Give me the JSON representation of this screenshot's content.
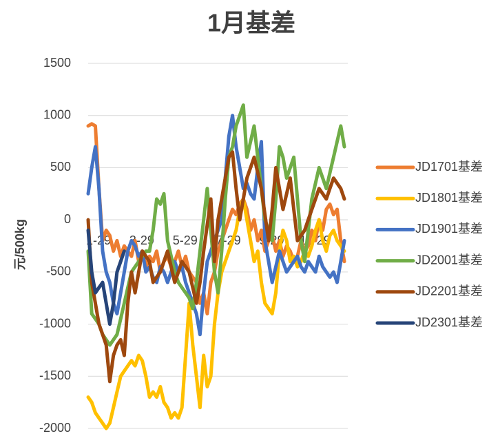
{
  "chart_data": {
    "type": "line",
    "title": "1月基差",
    "y_label": "元/500kg",
    "categories": [
      "1-29",
      null,
      null,
      null,
      null,
      null,
      null,
      null,
      null,
      null,
      null,
      null,
      "3-29",
      null,
      null,
      null,
      null,
      null,
      null,
      null,
      null,
      null,
      null,
      null,
      "5-29",
      null,
      null,
      null,
      null,
      null,
      null,
      null,
      null,
      null,
      null,
      null,
      "7-29",
      null,
      null,
      null,
      null,
      null,
      null,
      null,
      null,
      null,
      null,
      null,
      "9-29",
      null,
      null,
      null,
      null,
      null,
      null,
      null,
      null,
      null,
      null,
      null,
      "11-29",
      null,
      null,
      null,
      null,
      null,
      null,
      null,
      null,
      null,
      null,
      null
    ],
    "ylim": [
      -2000,
      1500
    ],
    "yticks": [
      -2000,
      -1500,
      -1000,
      -500,
      0,
      500,
      1000,
      1500
    ],
    "grid": true,
    "legend": "right",
    "series": [
      {
        "name": "JD1701基差",
        "color": "#ED7D31",
        "values": [
          900,
          920,
          900,
          300,
          -200,
          -100,
          -150,
          -300,
          -200,
          -350,
          -250,
          -300,
          -350,
          -200,
          -400,
          -300,
          -450,
          -350,
          -400,
          -300,
          -500,
          -400,
          -350,
          -450,
          -400,
          -300,
          -450,
          -350,
          -500,
          -550,
          -600,
          -800,
          -700,
          -900,
          -600,
          -500,
          -300,
          -200,
          -100,
          0,
          100,
          50,
          150,
          200,
          100,
          -100,
          0,
          -200,
          -100,
          -300,
          -200,
          -150,
          -300,
          -200,
          -350,
          -250,
          -300,
          -400,
          -350,
          -200,
          -300,
          -250,
          -100,
          -200,
          0,
          -100,
          100,
          150,
          50,
          100,
          -200,
          -400
        ]
      },
      {
        "name": "JD1801基差",
        "color": "#FFC000",
        "values": [
          -1700,
          -1750,
          -1850,
          -1900,
          -1950,
          -2000,
          -1950,
          -1800,
          -1650,
          -1500,
          -1450,
          -1400,
          -1350,
          -1400,
          -1300,
          -1350,
          -1500,
          -1700,
          -1650,
          -1700,
          -1600,
          -1750,
          -1800,
          -1900,
          -1850,
          -1900,
          -1800,
          -1300,
          -800,
          -1200,
          -1500,
          -1800,
          -1300,
          -1600,
          -1500,
          -1000,
          -700,
          -500,
          -400,
          -300,
          -200,
          -100,
          100,
          200,
          0,
          -200,
          -400,
          -300,
          -600,
          -800,
          -850,
          -900,
          -700,
          -300,
          -100,
          -200,
          -400,
          -350,
          -450,
          -400,
          -300,
          -350,
          -250,
          -100,
          0,
          -200,
          -300,
          -150,
          -100,
          -200,
          -250,
          -300
        ]
      },
      {
        "name": "JD1901基差",
        "color": "#4472C4",
        "values": [
          250,
          500,
          700,
          300,
          -300,
          -500,
          -600,
          -800,
          -900,
          -700,
          -500,
          -300,
          -200,
          -250,
          -350,
          -300,
          -500,
          -450,
          -550,
          -600,
          -450,
          -500,
          -600,
          -500,
          -400,
          -500,
          -450,
          -600,
          -700,
          -800,
          -900,
          -1100,
          -700,
          -400,
          -300,
          -200,
          -100,
          0,
          400,
          800,
          1000,
          700,
          500,
          300,
          350,
          250,
          200,
          500,
          750,
          -200,
          -400,
          -600,
          -450,
          -300,
          -400,
          -500,
          -450,
          -400,
          -350,
          -450,
          -500,
          -400,
          -450,
          -500,
          -350,
          -450,
          -500,
          -550,
          -500,
          -600,
          -400,
          -200
        ]
      },
      {
        "name": "JD2001基差",
        "color": "#70AD47",
        "values": [
          -300,
          -900,
          -950,
          -1000,
          -1100,
          -1150,
          -1200,
          -1150,
          -1100,
          -950,
          -800,
          -650,
          -500,
          -450,
          -400,
          -350,
          -300,
          -300,
          -100,
          200,
          150,
          250,
          -200,
          -350,
          -500,
          -600,
          -650,
          -700,
          -750,
          -850,
          -600,
          -300,
          0,
          300,
          -100,
          -500,
          -700,
          -300,
          200,
          600,
          700,
          900,
          1000,
          1100,
          600,
          750,
          900,
          600,
          300,
          0,
          -100,
          -200,
          200,
          700,
          600,
          400,
          500,
          600,
          200,
          -200,
          -400,
          -100,
          200,
          350,
          500,
          400,
          300,
          450,
          600,
          750,
          900,
          700
        ]
      },
      {
        "name": "JD2201基差",
        "color": "#9E480E",
        "values": [
          0,
          -600,
          -800,
          -1000,
          -1100,
          -1200,
          -1550,
          -1300,
          -1200,
          -1150,
          -1300,
          -800,
          -500,
          -700,
          -500,
          -300,
          -350,
          -400,
          -600,
          -550,
          -500,
          -400,
          -300,
          -450,
          -600,
          -500,
          -400,
          -450,
          -500,
          -650,
          -800,
          -600,
          -300,
          -50,
          200,
          -400,
          0,
          200,
          400,
          600,
          650,
          300,
          0,
          200,
          400,
          500,
          600,
          450,
          300,
          50,
          -200,
          100,
          500,
          300,
          100,
          250,
          400,
          100,
          -200,
          -150,
          -100,
          0,
          100,
          200,
          300,
          250,
          200,
          300,
          400,
          350,
          300,
          200
        ]
      },
      {
        "name": "JD2301基差",
        "color": "#264478",
        "values": [
          -100,
          -500,
          -700,
          -650,
          -600,
          -800,
          -1000,
          -800,
          -500,
          -400,
          -300,
          null,
          null,
          null,
          null,
          null,
          null,
          null,
          null,
          null,
          null,
          null,
          null,
          null,
          null,
          null,
          null,
          null,
          null,
          null,
          null,
          null,
          null,
          null,
          null,
          null,
          null,
          null,
          null,
          null,
          null,
          null,
          null,
          null,
          null,
          null,
          null,
          null,
          null,
          null,
          null,
          null,
          null,
          null,
          null,
          null,
          null,
          null,
          null,
          null,
          null,
          null,
          null,
          null,
          null,
          null,
          null,
          null,
          null,
          null,
          null,
          null
        ]
      }
    ]
  }
}
